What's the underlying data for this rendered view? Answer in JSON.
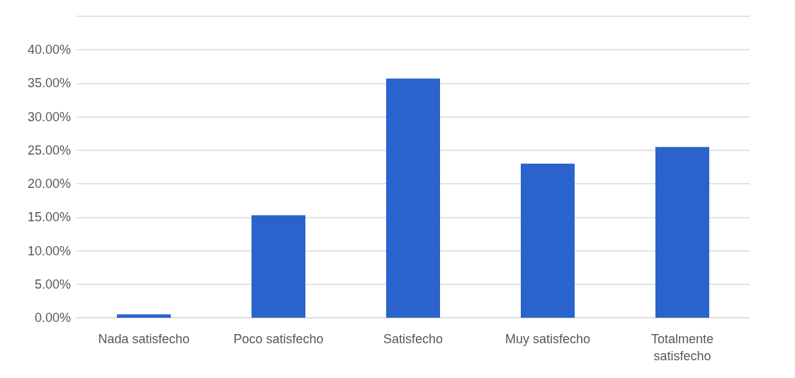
{
  "chart_data": {
    "type": "bar",
    "categories": [
      "Nada satisfecho",
      "Poco satisfecho",
      "Satisfecho",
      "Muy satisfecho",
      "Totalmente satisfecho"
    ],
    "values": [
      0.5,
      15.3,
      35.7,
      23.0,
      25.5
    ],
    "color": "#2b63cc",
    "ylim": [
      0,
      45
    ],
    "yticks": [
      {
        "value": 0,
        "label": "0.00%"
      },
      {
        "value": 5,
        "label": "5.00%"
      },
      {
        "value": 10,
        "label": "10.00%"
      },
      {
        "value": 15,
        "label": "15.00%"
      },
      {
        "value": 20,
        "label": "20.00%"
      },
      {
        "value": 25,
        "label": "25.00%"
      },
      {
        "value": 30,
        "label": "30.00%"
      },
      {
        "value": 35,
        "label": "35.00%"
      },
      {
        "value": 40,
        "label": "40.00%"
      },
      {
        "value": 45,
        "label": null
      }
    ],
    "grid": true
  }
}
